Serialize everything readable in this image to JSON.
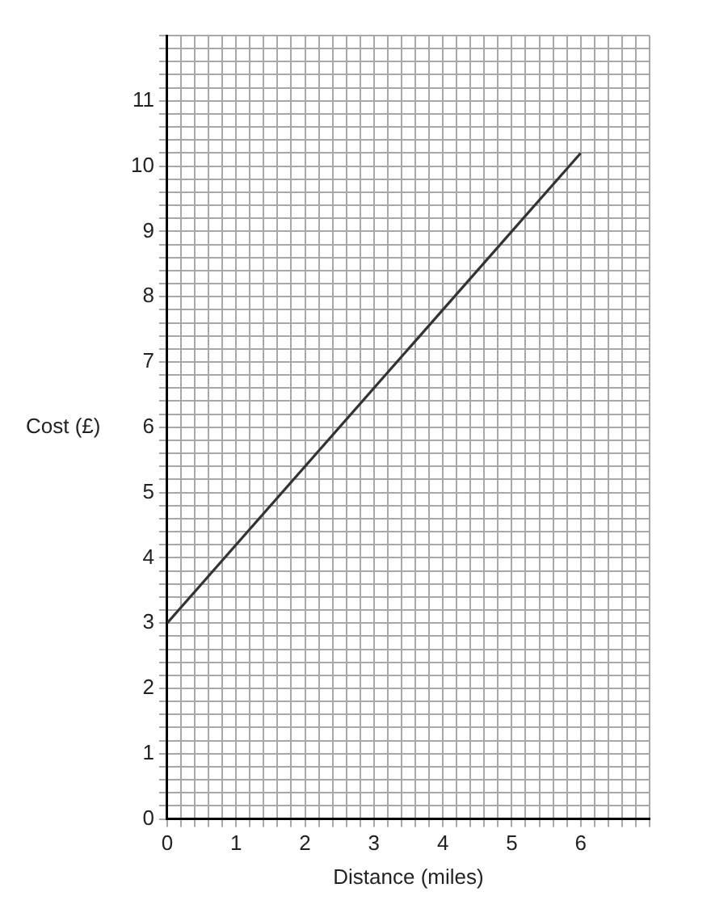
{
  "chart_data": {
    "type": "line",
    "xlabel": "Distance (miles)",
    "ylabel": "Cost (£)",
    "series": [
      {
        "color": "#333333",
        "x": [
          0,
          6
        ],
        "values": [
          3,
          10.2
        ]
      }
    ],
    "xlim": [
      0,
      7
    ],
    "ylim": [
      0,
      12
    ],
    "xticks": [
      0,
      {
        "value": 0.2,
        "label": null
      },
      {
        "value": 0.4,
        "label": null
      },
      {
        "value": 0.6,
        "label": null
      },
      {
        "value": 0.8,
        "label": null
      },
      1,
      {
        "value": 1.2,
        "label": null
      },
      {
        "value": 1.4,
        "label": null
      },
      {
        "value": 1.6,
        "label": null
      },
      {
        "value": 1.8,
        "label": null
      },
      2,
      {
        "value": 2.2,
        "label": null
      },
      {
        "value": 2.4,
        "label": null
      },
      {
        "value": 2.6,
        "label": null
      },
      {
        "value": 2.8,
        "label": null
      },
      3,
      {
        "value": 3.2,
        "label": null
      },
      {
        "value": 3.4,
        "label": null
      },
      {
        "value": 3.6,
        "label": null
      },
      {
        "value": 3.8,
        "label": null
      },
      4,
      {
        "value": 4.2,
        "label": null
      },
      {
        "value": 4.4,
        "label": null
      },
      {
        "value": 4.6,
        "label": null
      },
      {
        "value": 4.8,
        "label": null
      },
      5,
      {
        "value": 5.2,
        "label": null
      },
      {
        "value": 5.4,
        "label": null
      },
      {
        "value": 5.6,
        "label": null
      },
      {
        "value": 5.8,
        "label": null
      },
      6,
      {
        "value": 6.2,
        "label": null
      },
      {
        "value": 6.4,
        "label": null
      },
      {
        "value": 6.6,
        "label": null
      },
      {
        "value": 6.8,
        "label": null
      },
      {
        "value": 7,
        "label": null
      }
    ],
    "yticks": [
      0,
      {
        "value": 0.2,
        "label": null
      },
      {
        "value": 0.4,
        "label": null
      },
      {
        "value": 0.6,
        "label": null
      },
      {
        "value": 0.8,
        "label": null
      },
      1,
      {
        "value": 1.2,
        "label": null
      },
      {
        "value": 1.4,
        "label": null
      },
      {
        "value": 1.6,
        "label": null
      },
      {
        "value": 1.8,
        "label": null
      },
      2,
      {
        "value": 2.2,
        "label": null
      },
      {
        "value": 2.4,
        "label": null
      },
      {
        "value": 2.6,
        "label": null
      },
      {
        "value": 2.8,
        "label": null
      },
      3,
      {
        "value": 3.2,
        "label": null
      },
      {
        "value": 3.4,
        "label": null
      },
      {
        "value": 3.6,
        "label": null
      },
      {
        "value": 3.8,
        "label": null
      },
      4,
      {
        "value": 4.2,
        "label": null
      },
      {
        "value": 4.4,
        "label": null
      },
      {
        "value": 4.6,
        "label": null
      },
      {
        "value": 4.8,
        "label": null
      },
      5,
      {
        "value": 5.2,
        "label": null
      },
      {
        "value": 5.4,
        "label": null
      },
      {
        "value": 5.6,
        "label": null
      },
      {
        "value": 5.8,
        "label": null
      },
      6,
      {
        "value": 6.2,
        "label": null
      },
      {
        "value": 6.4,
        "label": null
      },
      {
        "value": 6.6,
        "label": null
      },
      {
        "value": 6.8,
        "label": null
      },
      7,
      {
        "value": 7.2,
        "label": null
      },
      {
        "value": 7.4,
        "label": null
      },
      {
        "value": 7.6,
        "label": null
      },
      {
        "value": 7.8,
        "label": null
      },
      8,
      {
        "value": 8.2,
        "label": null
      },
      {
        "value": 8.4,
        "label": null
      },
      {
        "value": 8.6,
        "label": null
      },
      {
        "value": 8.8,
        "label": null
      },
      9,
      {
        "value": 9.2,
        "label": null
      },
      {
        "value": 9.4,
        "label": null
      },
      {
        "value": 9.6,
        "label": null
      },
      {
        "value": 9.8,
        "label": null
      },
      10,
      {
        "value": 10.2,
        "label": null
      },
      {
        "value": 10.4,
        "label": null
      },
      {
        "value": 10.6,
        "label": null
      },
      {
        "value": 10.8,
        "label": null
      },
      11,
      {
        "value": 11.2,
        "label": null
      },
      {
        "value": 11.4,
        "label": null
      },
      {
        "value": 11.6,
        "label": null
      },
      {
        "value": 11.8,
        "label": null
      },
      {
        "value": 12,
        "label": null
      }
    ],
    "grid": true,
    "legend": false,
    "marker": "none",
    "line_style": "solid"
  }
}
